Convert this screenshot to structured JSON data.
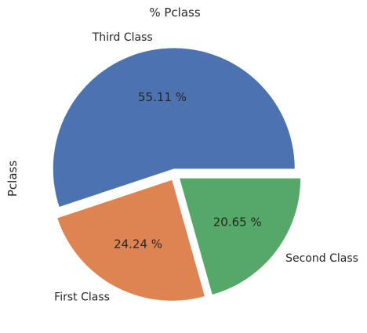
{
  "chart_data": {
    "type": "pie",
    "title": "% Pclass",
    "ylabel": "Pclass",
    "start_angle_deg": 0,
    "direction": "counterclockwise",
    "slices": [
      {
        "label": "Third Class",
        "value": 55.11,
        "pct_label": "55.11 %",
        "color": "#4c72b0",
        "explode": 0.05
      },
      {
        "label": "First Class",
        "value": 24.24,
        "pct_label": "24.24 %",
        "color": "#dd8452",
        "explode": 0.05
      },
      {
        "label": "Second Class",
        "value": 20.65,
        "pct_label": "20.65 %",
        "color": "#55a868",
        "explode": 0.05
      }
    ]
  }
}
